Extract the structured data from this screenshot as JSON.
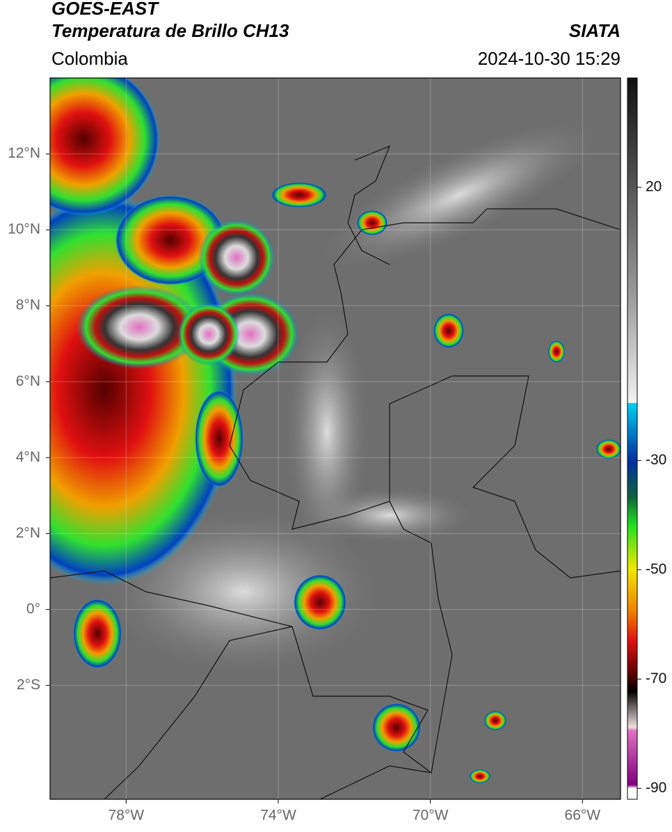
{
  "header": {
    "satellite": "GOES-EAST",
    "product": "Temperatura de Brillo CH13",
    "region": "Colombia",
    "source": "SIATA",
    "datetime": "2024-10-30 15:29"
  },
  "map": {
    "xlim": [
      -80,
      -65
    ],
    "ylim": [
      -5,
      14
    ],
    "xticks": [
      {
        "value": -78,
        "label": "78°W"
      },
      {
        "value": -74,
        "label": "74°W"
      },
      {
        "value": -70,
        "label": "70°W"
      },
      {
        "value": -66,
        "label": "66°W"
      }
    ],
    "yticks": [
      {
        "value": 12,
        "label": "12°N"
      },
      {
        "value": 10,
        "label": "10°N"
      },
      {
        "value": 8,
        "label": "8°N"
      },
      {
        "value": 6,
        "label": "6°N"
      },
      {
        "value": 4,
        "label": "4°N"
      },
      {
        "value": 2,
        "label": "2°N"
      },
      {
        "value": 0,
        "label": "0°"
      },
      {
        "value": -2,
        "label": "2°S"
      }
    ]
  },
  "colorbar": {
    "lim": [
      -92,
      40
    ],
    "ticks": [
      20,
      -30,
      -50,
      -70,
      -90
    ]
  }
}
